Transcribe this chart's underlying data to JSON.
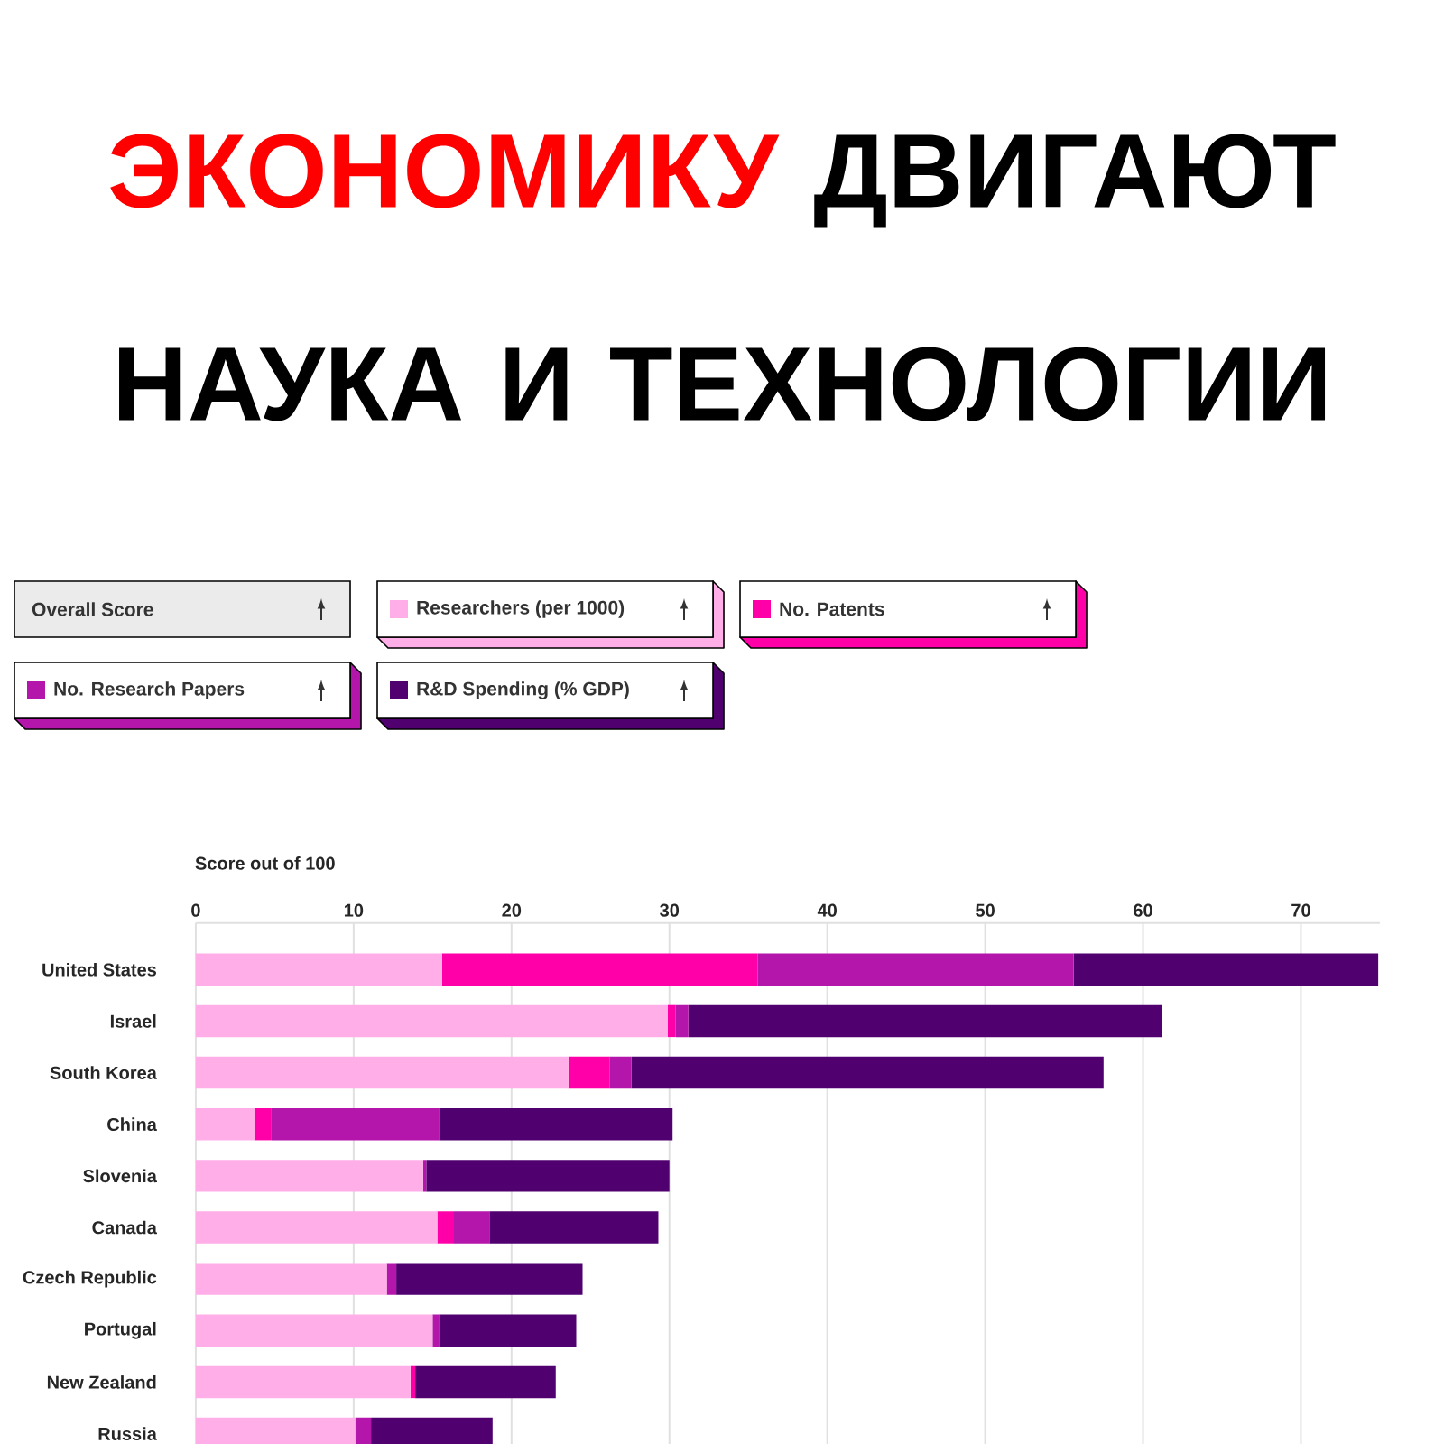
{
  "chart_data": {
    "type": "bar",
    "orientation": "horizontal",
    "stacked": true,
    "title": "ЭКОНОМИКУ",
    "subtitle": "ДВИГАЮТ НАУКА И ТЕХНОЛОГИИ",
    "xlabel": "Score out of 100",
    "annotations": [
      "Overall Score"
    ],
    "categories": [
      "United States",
      "Israel",
      "South Korea",
      "China",
      "Slovenia",
      "Canada",
      "Czech Republic",
      "Portugal",
      "New Zealand",
      "Russia"
    ],
    "series": [
      {
        "name": "Researchers (per 1000)",
        "color": "#ffaee8",
        "values": [
          15.6,
          29.9,
          23.6,
          3.7,
          14.4,
          15.3,
          12.1,
          15.0,
          13.6,
          10.1
        ]
      },
      {
        "name": "No. Patents",
        "color": "#ff00a8",
        "values": [
          20.0,
          0.5,
          2.6,
          1.1,
          0,
          1.0,
          0,
          0,
          0.3,
          0
        ]
      },
      {
        "name": "No. Research Papers",
        "color": "#b415ab",
        "values": [
          20.0,
          0.8,
          1.4,
          10.6,
          0.2,
          2.3,
          0.6,
          0.4,
          0,
          1.0
        ]
      },
      {
        "name": "R&D Spending (% GDP)",
        "color": "#510070",
        "values": [
          19.3,
          30.0,
          29.9,
          14.8,
          15.4,
          10.7,
          11.8,
          8.7,
          8.9,
          7.7
        ]
      }
    ],
    "xlim": [
      0,
      75
    ],
    "xticks": [
      0,
      10,
      20,
      30,
      40,
      50,
      60,
      70
    ],
    "grid": "x",
    "legend": "top left"
  }
}
